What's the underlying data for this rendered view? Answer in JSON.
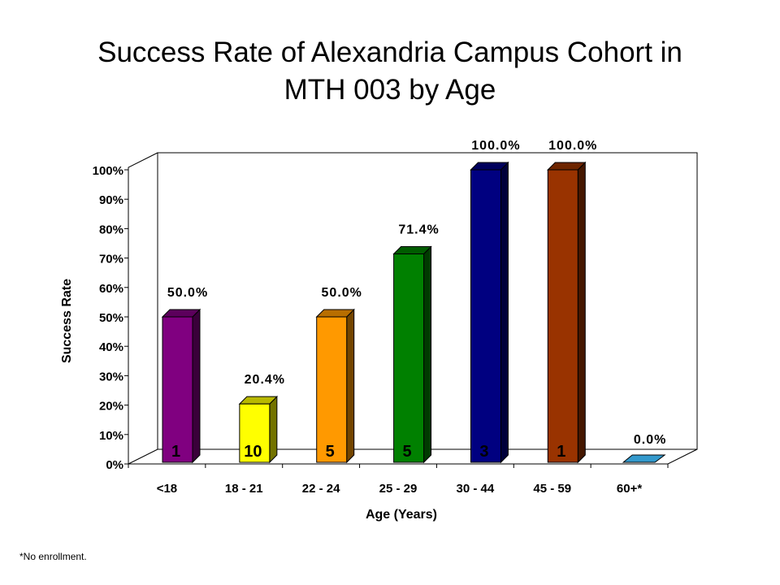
{
  "title_line1": "Success Rate of Alexandria Campus Cohort in",
  "title_line2": "MTH 003 by Age",
  "footnote": "*No enrollment.",
  "chart_data": {
    "type": "bar",
    "title": "Success Rate of Alexandria Campus Cohort in MTH 003 by Age",
    "xlabel": "Age (Years)",
    "ylabel": "Success Rate",
    "ylim": [
      0,
      100
    ],
    "yticks": [
      "0%",
      "10%",
      "20%",
      "30%",
      "40%",
      "50%",
      "60%",
      "70%",
      "80%",
      "90%",
      "100%"
    ],
    "grid": false,
    "categories": [
      "<18",
      "18 - 21",
      "22 - 24",
      "25 - 29",
      "30 - 44",
      "45 - 59",
      "60+*"
    ],
    "values": [
      50.0,
      20.4,
      50.0,
      71.4,
      100.0,
      100.0,
      0.0
    ],
    "value_labels": [
      "50.0%",
      "20.4%",
      "50.0%",
      "71.4%",
      "100.0%",
      "100.0%",
      "0.0%"
    ],
    "counts": [
      "1",
      "10",
      "5",
      "5",
      "3",
      "1",
      ""
    ],
    "colors": [
      "#800080",
      "#FFFF00",
      "#FF9900",
      "#008000",
      "#000080",
      "#993300",
      "#3399CC"
    ]
  }
}
